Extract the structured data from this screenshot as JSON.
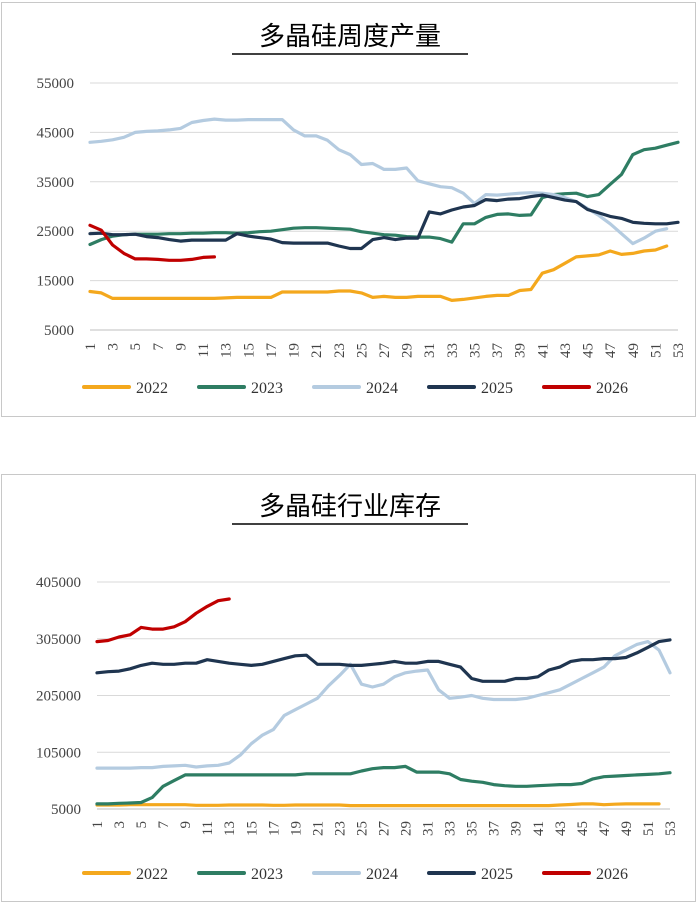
{
  "colors": {
    "2022": "#f4a81d",
    "2023": "#2e7d63",
    "2024": "#b4cbe0",
    "2025": "#1f3550",
    "2026": "#c00000",
    "grid": "#d9d9d9"
  },
  "chart_data": [
    {
      "type": "line",
      "title": "多晶硅周度产量",
      "xlabel": "",
      "ylabel": "",
      "x": [
        1,
        2,
        3,
        4,
        5,
        6,
        7,
        8,
        9,
        10,
        11,
        12,
        13,
        14,
        15,
        16,
        17,
        18,
        19,
        20,
        21,
        22,
        23,
        24,
        25,
        26,
        27,
        28,
        29,
        30,
        31,
        32,
        33,
        34,
        35,
        36,
        37,
        38,
        39,
        40,
        41,
        42,
        43,
        44,
        45,
        46,
        47,
        48,
        49,
        50,
        51,
        52,
        53
      ],
      "x_ticks": [
        "1",
        "3",
        "5",
        "7",
        "9",
        "11",
        "13",
        "15",
        "17",
        "19",
        "21",
        "23",
        "25",
        "27",
        "29",
        "31",
        "33",
        "35",
        "37",
        "39",
        "41",
        "43",
        "45",
        "47",
        "49",
        "51",
        "53"
      ],
      "y_ticks": [
        "5000",
        "15000",
        "25000",
        "35000",
        "45000",
        "55000"
      ],
      "ylim": [
        5000,
        55000
      ],
      "grid": true,
      "legend": "bottom",
      "series": [
        {
          "name": "2022",
          "values": [
            12800,
            12500,
            11400,
            11400,
            11400,
            11400,
            11400,
            11400,
            11400,
            11400,
            11400,
            11400,
            11500,
            11600,
            11600,
            11600,
            11600,
            12700,
            12700,
            12700,
            12700,
            12700,
            12900,
            12900,
            12500,
            11600,
            11800,
            11600,
            11600,
            11800,
            11800,
            11800,
            11000,
            11200,
            11500,
            11800,
            12000,
            12000,
            13000,
            13200,
            16500,
            17200,
            18500,
            19800,
            20000,
            20200,
            21000,
            20300,
            20500,
            21000,
            21200,
            22000,
            null
          ]
        },
        {
          "name": "2023",
          "values": [
            22300,
            23300,
            24000,
            24300,
            24400,
            24400,
            24400,
            24500,
            24500,
            24600,
            24600,
            24700,
            24700,
            24600,
            24700,
            24900,
            25000,
            25300,
            25600,
            25700,
            25700,
            25600,
            25500,
            25400,
            24900,
            24600,
            24300,
            24200,
            23900,
            23800,
            23800,
            23500,
            22800,
            26500,
            26500,
            27800,
            28400,
            28500,
            28200,
            28300,
            31800,
            32400,
            32600,
            32700,
            32000,
            32400,
            34500,
            36500,
            40500,
            41500,
            41800,
            42400,
            43000
          ]
        },
        {
          "name": "2024",
          "values": [
            43000,
            43200,
            43500,
            44000,
            45000,
            45200,
            45300,
            45500,
            45800,
            47000,
            47400,
            47700,
            47500,
            47500,
            47600,
            47600,
            47600,
            47600,
            45500,
            44300,
            44300,
            43400,
            41500,
            40500,
            38500,
            38700,
            37500,
            37500,
            37800,
            35200,
            34600,
            34000,
            33800,
            32700,
            30600,
            32400,
            32300,
            32500,
            32700,
            32800,
            32700,
            32400,
            31800,
            31000,
            29600,
            28200,
            26500,
            24500,
            22500,
            23600,
            25000,
            25500,
            null
          ]
        },
        {
          "name": "2025",
          "values": [
            24500,
            24600,
            24300,
            24300,
            24400,
            23900,
            23700,
            23300,
            23000,
            23200,
            23200,
            23200,
            23200,
            24500,
            24000,
            23700,
            23400,
            22700,
            22600,
            22600,
            22600,
            22600,
            22000,
            21500,
            21500,
            23300,
            23700,
            23300,
            23600,
            23600,
            28900,
            28500,
            29300,
            29900,
            30200,
            31400,
            31200,
            31500,
            31600,
            32000,
            32300,
            31800,
            31300,
            31000,
            29400,
            28700,
            28000,
            27600,
            26800,
            26600,
            26500,
            26500,
            26800
          ]
        },
        {
          "name": "2026",
          "values": [
            26200,
            25200,
            22200,
            20500,
            19400,
            19400,
            19300,
            19100,
            19100,
            19300,
            19700,
            19800,
            null,
            null,
            null,
            null,
            null,
            null,
            null,
            null,
            null,
            null,
            null,
            null,
            null,
            null,
            null,
            null,
            null,
            null,
            null,
            null,
            null,
            null,
            null,
            null,
            null,
            null,
            null,
            null,
            null,
            null,
            null,
            null,
            null,
            null,
            null,
            null,
            null,
            null,
            null,
            null,
            null
          ]
        }
      ]
    },
    {
      "type": "line",
      "title": "多晶硅行业库存",
      "xlabel": "",
      "ylabel": "",
      "x": [
        1,
        2,
        3,
        4,
        5,
        6,
        7,
        8,
        9,
        10,
        11,
        12,
        13,
        14,
        15,
        16,
        17,
        18,
        19,
        20,
        21,
        22,
        23,
        24,
        25,
        26,
        27,
        28,
        29,
        30,
        31,
        32,
        33,
        34,
        35,
        36,
        37,
        38,
        39,
        40,
        41,
        42,
        43,
        44,
        45,
        46,
        47,
        48,
        49,
        50,
        51,
        52,
        53
      ],
      "x_ticks": [
        "1",
        "3",
        "5",
        "7",
        "9",
        "11",
        "13",
        "15",
        "17",
        "19",
        "21",
        "23",
        "25",
        "27",
        "29",
        "31",
        "33",
        "35",
        "37",
        "39",
        "41",
        "43",
        "45",
        "47",
        "49",
        "51",
        "53"
      ],
      "y_ticks": [
        "5000",
        "105000",
        "205000",
        "305000",
        "405000"
      ],
      "ylim": [
        5000,
        405000
      ],
      "grid": true,
      "legend": "bottom",
      "series": [
        {
          "name": "2022",
          "values": [
            12000,
            12000,
            12000,
            12500,
            12500,
            12500,
            12500,
            12500,
            12500,
            11500,
            11500,
            11500,
            12000,
            12000,
            12000,
            12000,
            11500,
            11500,
            12000,
            12000,
            12000,
            12000,
            12000,
            11000,
            11000,
            11000,
            11000,
            11000,
            11000,
            11000,
            11000,
            11000,
            11000,
            11000,
            11000,
            11000,
            11000,
            11000,
            11000,
            11000,
            11000,
            11000,
            12000,
            13000,
            14000,
            14000,
            12500,
            13500,
            14000,
            14000,
            14000,
            14000,
            null
          ]
        },
        {
          "name": "2023",
          "values": [
            14000,
            14000,
            15000,
            15500,
            16500,
            25000,
            45000,
            55000,
            65000,
            65000,
            65000,
            65000,
            65000,
            65000,
            65000,
            65000,
            65000,
            65000,
            65000,
            67000,
            67000,
            67000,
            67000,
            67000,
            72000,
            76000,
            78000,
            78000,
            80000,
            70000,
            70000,
            70000,
            67000,
            57000,
            54000,
            52000,
            48000,
            46000,
            45000,
            45000,
            46000,
            47000,
            48000,
            48000,
            50000,
            58000,
            62000,
            63000,
            64000,
            65000,
            66000,
            67000,
            69000
          ]
        },
        {
          "name": "2024",
          "values": [
            77000,
            77000,
            77000,
            77000,
            78000,
            78000,
            80000,
            81000,
            82000,
            79000,
            81000,
            82000,
            86000,
            100000,
            120000,
            135000,
            145000,
            170000,
            180000,
            190000,
            200000,
            222000,
            240000,
            260000,
            225000,
            220000,
            225000,
            238000,
            245000,
            248000,
            250000,
            215000,
            200000,
            202000,
            205000,
            200000,
            198000,
            198000,
            198000,
            200000,
            205000,
            210000,
            215000,
            225000,
            235000,
            245000,
            255000,
            275000,
            285000,
            295000,
            300000,
            285000,
            245000
          ]
        },
        {
          "name": "2025",
          "values": [
            245000,
            247000,
            248000,
            252000,
            258000,
            262000,
            260000,
            260000,
            262000,
            262000,
            268000,
            265000,
            262000,
            260000,
            258000,
            260000,
            265000,
            270000,
            275000,
            276000,
            260000,
            260000,
            260000,
            258000,
            258000,
            260000,
            262000,
            265000,
            262000,
            262000,
            265000,
            265000,
            260000,
            255000,
            235000,
            230000,
            230000,
            230000,
            235000,
            235000,
            238000,
            250000,
            255000,
            265000,
            268000,
            268000,
            270000,
            270000,
            272000,
            280000,
            290000,
            300000,
            303000
          ]
        },
        {
          "name": "2026",
          "values": [
            300000,
            302000,
            308000,
            312000,
            325000,
            322000,
            322000,
            326000,
            335000,
            350000,
            362000,
            372000,
            375000,
            null,
            null,
            null,
            null,
            null,
            null,
            null,
            null,
            null,
            null,
            null,
            null,
            null,
            null,
            null,
            null,
            null,
            null,
            null,
            null,
            null,
            null,
            null,
            null,
            null,
            null,
            null,
            null,
            null,
            null,
            null,
            null,
            null,
            null,
            null,
            null,
            null,
            null,
            null,
            null
          ]
        }
      ]
    }
  ]
}
